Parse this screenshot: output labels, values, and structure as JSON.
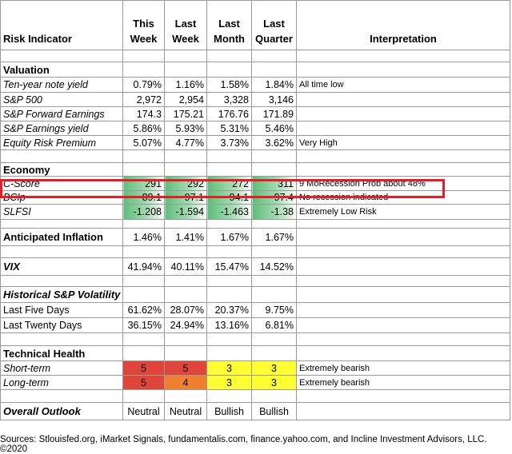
{
  "headers": {
    "indicator": "Risk Indicator",
    "this_week": [
      "This",
      "Week"
    ],
    "last_week": [
      "Last",
      "Week"
    ],
    "last_month": [
      "Last",
      "Month"
    ],
    "last_quarter": [
      "Last",
      "Quarter"
    ],
    "interpretation": "Interpretation"
  },
  "sections": {
    "valuation": "Valuation",
    "economy": "Economy",
    "technical": "Technical Health"
  },
  "rows": {
    "ten_year": {
      "label": "Ten-year note yield",
      "v": [
        "0.79%",
        "1.16%",
        "1.58%",
        "1.84%"
      ],
      "interp": "All time low"
    },
    "sp500": {
      "label": "S&P 500",
      "v": [
        "2,972",
        "2,954",
        "3,328",
        "3,146"
      ],
      "interp": ""
    },
    "fwd_earn": {
      "label": "S&P Forward Earnings",
      "v": [
        "174.3",
        "175.21",
        "176.76",
        "171.89"
      ],
      "interp": ""
    },
    "earn_yield": {
      "label": "S&P Earnings yield",
      "v": [
        "5.86%",
        "5.93%",
        "5.31%",
        "5.46%"
      ],
      "interp": ""
    },
    "erp": {
      "label": "Equity Risk Premium",
      "v": [
        "5.07%",
        "4.77%",
        "3.73%",
        "3.62%"
      ],
      "interp": "Very High"
    },
    "cscore": {
      "label": "C-Score",
      "v": [
        "291",
        "292",
        "272",
        "311"
      ],
      "interp": "9 MoRecession Prob about 48%"
    },
    "bcip": {
      "label": "BCIp",
      "v": [
        "89.1",
        "97.1",
        "94.1",
        "97.4"
      ],
      "interp": "No recession indicated"
    },
    "slfsi": {
      "label": "SLFSI",
      "v": [
        "-1.208",
        "-1.594",
        "-1.463",
        "-1.38"
      ],
      "interp": "Extremely Low Risk"
    },
    "inflation": {
      "label": "Anticipated Inflation",
      "v": [
        "1.46%",
        "1.41%",
        "1.67%",
        "1.67%"
      ],
      "interp": ""
    },
    "vix": {
      "label": "VIX",
      "v": [
        "41.94%",
        "40.11%",
        "15.47%",
        "14.52%"
      ],
      "interp": ""
    },
    "hist_vol": {
      "label": "Historical  S&P Volatility"
    },
    "five_days": {
      "label": "Last Five Days",
      "v": [
        "61.62%",
        "28.07%",
        "20.37%",
        "9.75%"
      ],
      "interp": ""
    },
    "twenty_days": {
      "label": "Last Twenty Days",
      "v": [
        "36.15%",
        "24.94%",
        "13.16%",
        "6.81%"
      ],
      "interp": ""
    },
    "short_term": {
      "label": "Short-term",
      "v": [
        "5",
        "5",
        "3",
        "3"
      ],
      "interp": "Extremely bearish"
    },
    "long_term": {
      "label": "Long-term",
      "v": [
        "5",
        "4",
        "3",
        "3"
      ],
      "interp": "Extremely bearish"
    },
    "outlook": {
      "label": "Overall Outlook",
      "v": [
        "Neutral",
        "Neutral",
        "Bullish",
        "Bullish"
      ],
      "interp": ""
    }
  },
  "colors": {
    "highlight_outline": "#e01f26",
    "red": "#e0453c",
    "orange": "#f08030",
    "yellow": "#ffff33",
    "green_bar": "#5cbf7a"
  },
  "footer": "Sources: Stlouisfed.org,  iMarket Signals, fundamentalis.com, finance.yahoo.com, and Incline Investment Advisors, LLC. ©2020"
}
